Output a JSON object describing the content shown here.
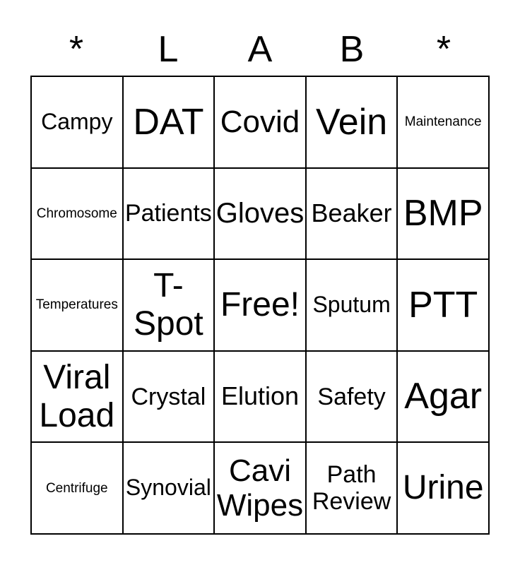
{
  "page": {
    "background": "#ffffff",
    "text_color": "#000000",
    "grid_line_color": "#000000"
  },
  "header": {
    "letters": [
      "*",
      "L",
      "A",
      "B",
      "*"
    ]
  },
  "card": {
    "rows": 5,
    "cols": 5,
    "cells": [
      {
        "label": "Campy",
        "size": "md"
      },
      {
        "label": "DAT",
        "size": "3xl"
      },
      {
        "label": "Covid",
        "size": "xl"
      },
      {
        "label": "Vein",
        "size": "3xl"
      },
      {
        "label": "Maintenance",
        "size": "xs"
      },
      {
        "label": "Chromosome",
        "size": "xs"
      },
      {
        "label": "Patients",
        "size": "mdl"
      },
      {
        "label": "Gloves",
        "size": "lg"
      },
      {
        "label": "Beaker",
        "size": "ml"
      },
      {
        "label": "BMP",
        "size": "3xl"
      },
      {
        "label": "Temperatures",
        "size": "xs"
      },
      {
        "label": "T-Spot",
        "size": "2xl"
      },
      {
        "label": "Free!",
        "size": "2xl"
      },
      {
        "label": "Sputum",
        "size": "md"
      },
      {
        "label": "PTT",
        "size": "3xl"
      },
      {
        "label": "Viral Load",
        "size": "2xl"
      },
      {
        "label": "Crystal",
        "size": "mdl"
      },
      {
        "label": "Elution",
        "size": "ml"
      },
      {
        "label": "Safety",
        "size": "mdl"
      },
      {
        "label": "Agar",
        "size": "3xl"
      },
      {
        "label": "Centrifuge",
        "size": "xs"
      },
      {
        "label": "Synovial",
        "size": "md"
      },
      {
        "label": "Cavi Wipes",
        "size": "xl"
      },
      {
        "label": "Path Review",
        "size": "mdl"
      },
      {
        "label": "Urine",
        "size": "2xl"
      }
    ]
  }
}
